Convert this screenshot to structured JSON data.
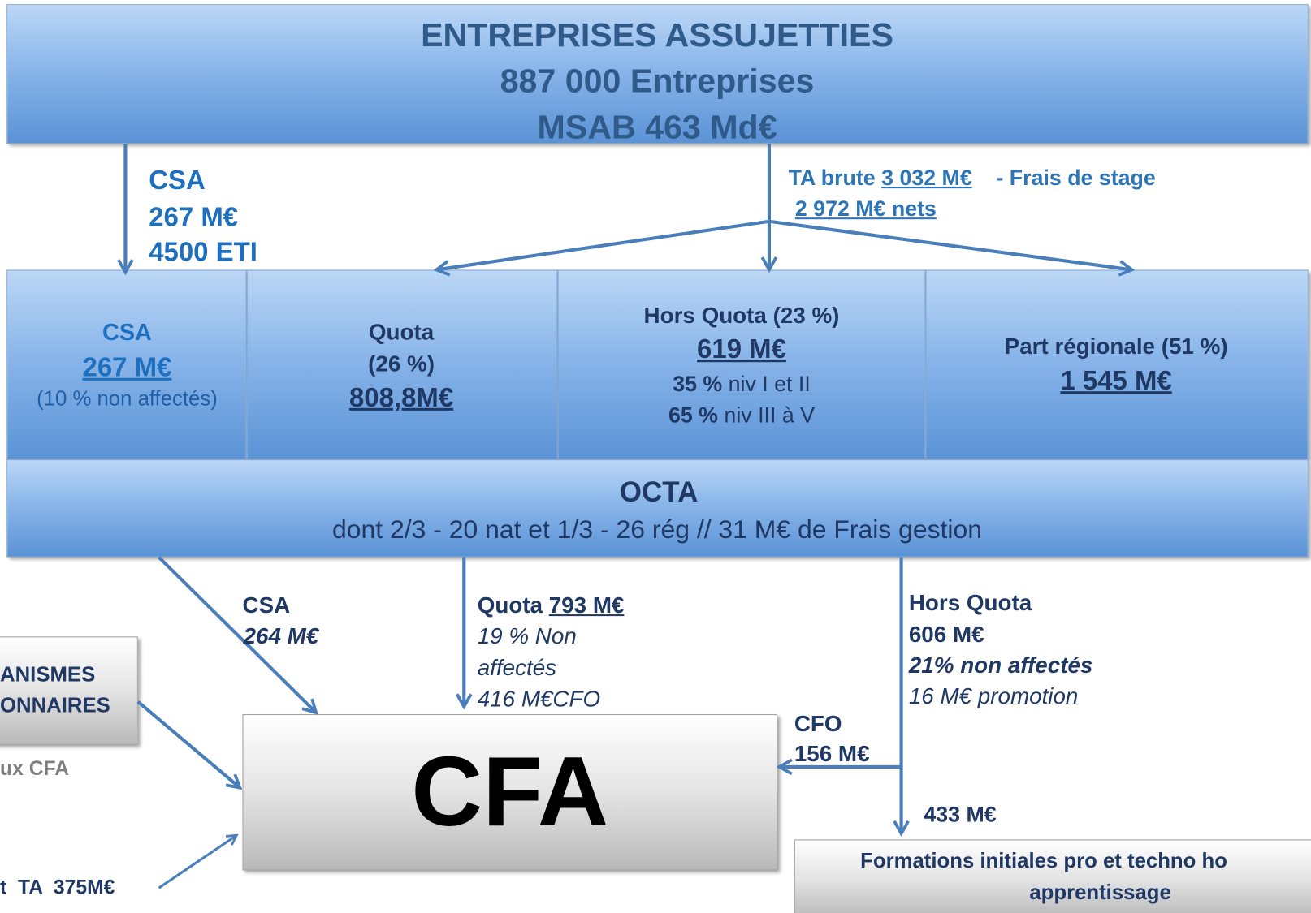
{
  "top": {
    "lines": [
      "ENTREPRISES ASSUJETTIES",
      "887 000 Entreprises",
      "MSAB 463 Md€"
    ]
  },
  "csa_flow": {
    "lines": [
      "CSA",
      "267 M€",
      "4500 ETI"
    ]
  },
  "ta_flow": {
    "label": "TA brute",
    "brute": "3 032 M€",
    "sep": "-  Frais de stage",
    "net": "2 972 M€ nets"
  },
  "boxes": {
    "csa": {
      "title": "CSA",
      "amount": "267 M€",
      "note": "(10 % non affectés)"
    },
    "quota": {
      "title": "Quota",
      "pct": "(26 %)",
      "amount": "808,8M€"
    },
    "hors_quota": {
      "title": "Hors Quota  (23 %)",
      "amount": "619 M€",
      "line1_bold": "35 %",
      "line1": "niv I et II",
      "line2_bold": "65 %",
      "line2": "niv  III à V"
    },
    "regional": {
      "title": "Part régionale (51 %)",
      "amount": "1 545 M€"
    }
  },
  "octa": {
    "title": "OCTA",
    "detail": "dont 2/3 - 20 nat et 1/3 - 26 rég // 31 M€ de Frais gestion"
  },
  "flows": {
    "csa": {
      "label": "CSA",
      "amount": "264 M€"
    },
    "quota": {
      "label": "Quota",
      "amount": "793 M€",
      "notes": [
        "19 % Non",
        "affectés",
        "416 M€CFO"
      ]
    },
    "hors_quota": {
      "label": "Hors Quota",
      "amount": "606 M€",
      "notes": [
        "21% non affectés",
        "16 M€ promotion"
      ]
    },
    "cfo": {
      "label": "CFO",
      "amount": "156  M€"
    },
    "other": "433 M€"
  },
  "cfa": "CFA",
  "side_box": {
    "lines": [
      "ANISMES",
      "ONNAIRES"
    ]
  },
  "side_note": "ux CFA",
  "side_ta": "t  TA  375M€",
  "bottom_box": {
    "lines": [
      "Formations initiales pro et techno ho",
      "apprentissage"
    ]
  }
}
